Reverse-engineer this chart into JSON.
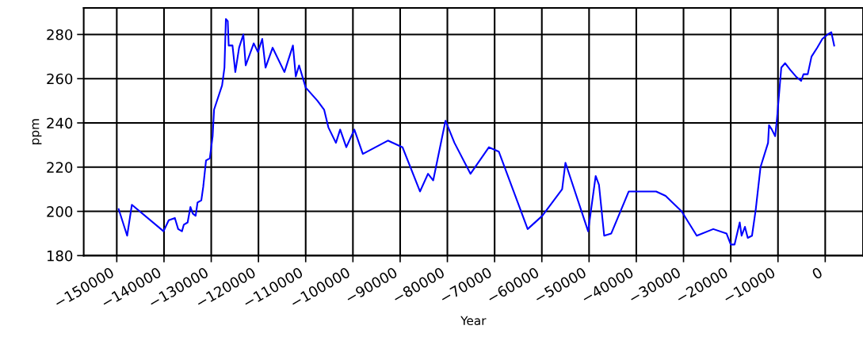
{
  "chart_data": {
    "type": "line",
    "xlabel": "Year",
    "ylabel": "ppm",
    "xlim": [
      -157000,
      8000
    ],
    "ylim": [
      180,
      292
    ],
    "xticks": [
      {
        "value": -150000,
        "label": "−150000"
      },
      {
        "value": -140000,
        "label": "−140000"
      },
      {
        "value": -130000,
        "label": "−130000"
      },
      {
        "value": -120000,
        "label": "−120000"
      },
      {
        "value": -110000,
        "label": "−110000"
      },
      {
        "value": -100000,
        "label": "−100000"
      },
      {
        "value": -90000,
        "label": "−90000"
      },
      {
        "value": -80000,
        "label": "−80000"
      },
      {
        "value": -70000,
        "label": "−70000"
      },
      {
        "value": -60000,
        "label": "−60000"
      },
      {
        "value": -50000,
        "label": "−50000"
      },
      {
        "value": -40000,
        "label": "−40000"
      },
      {
        "value": -30000,
        "label": "−30000"
      },
      {
        "value": -20000,
        "label": "−20000"
      },
      {
        "value": -10000,
        "label": "−10000"
      },
      0
    ],
    "yticks": [
      180,
      200,
      220,
      240,
      260,
      280
    ],
    "grid": true,
    "legend": false,
    "marker": "none",
    "line_style": "solid",
    "x": [
      -149600,
      -147800,
      -146800,
      -140100,
      -139000,
      -137700,
      -137000,
      -136200,
      -135800,
      -135000,
      -134400,
      -133900,
      -133300,
      -132900,
      -132100,
      -131700,
      -131100,
      -130300,
      -129700,
      -129400,
      -127700,
      -127200,
      -126900,
      -126500,
      -126300,
      -125500,
      -124900,
      -124100,
      -123200,
      -122700,
      -121000,
      -120100,
      -119200,
      -118500,
      -117000,
      -114500,
      -112700,
      -112100,
      -111400,
      -110000,
      -107500,
      -106100,
      -105200,
      -103600,
      -102700,
      -101400,
      -99700,
      -97900,
      -92600,
      -89500,
      -85800,
      -84100,
      -83000,
      -80400,
      -78500,
      -75100,
      -71200,
      -69100,
      -63000,
      -59900,
      -55700,
      -55000,
      -50200,
      -48600,
      -47900,
      -46800,
      -45300,
      -41600,
      -35800,
      -33800,
      -30400,
      -27200,
      -23700,
      -20900,
      -20000,
      -19200,
      -18100,
      -17700,
      -17000,
      -16400,
      -15500,
      -14700,
      -13700,
      -12100,
      -11900,
      -11300,
      -10600,
      -10200,
      -9300,
      -8500,
      -7400,
      -6200,
      -5100,
      -4600,
      -3700,
      -2900,
      -1700,
      -600,
      500,
      1300,
      1900
    ],
    "series": [
      {
        "color": "#0000ff",
        "values": [
          201,
          189,
          203,
          191,
          196,
          197,
          192,
          191,
          194,
          195,
          202,
          199,
          198,
          204,
          205,
          211,
          223,
          224,
          234,
          246,
          257,
          265,
          287,
          286,
          275,
          275,
          263,
          274,
          280,
          266,
          276,
          272,
          278,
          265,
          274,
          263,
          275,
          261,
          266,
          256,
          250,
          246,
          238,
          231,
          237,
          229,
          237,
          226,
          232,
          229,
          209,
          217,
          214,
          241,
          231,
          217,
          229,
          227,
          192,
          198,
          210,
          222,
          191,
          216,
          212,
          189,
          190,
          209,
          209,
          207,
          200,
          189,
          192,
          190,
          185,
          185,
          195,
          189,
          193,
          188,
          189,
          201,
          220,
          231,
          239,
          237,
          234,
          242,
          265,
          267,
          264,
          261,
          259,
          262,
          262,
          270,
          274,
          278,
          280,
          281,
          275
        ]
      }
    ]
  }
}
